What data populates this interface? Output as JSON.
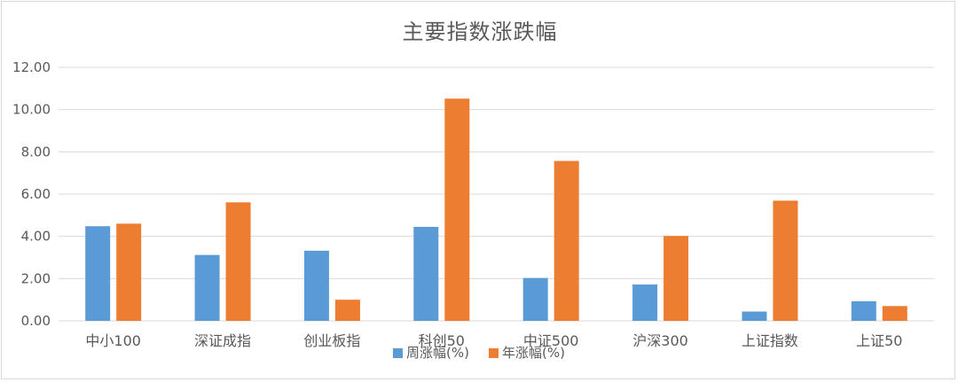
{
  "chart_data": {
    "type": "bar",
    "title": "主要指数涨跌幅",
    "categories": [
      "中小100",
      "深证成指",
      "创业板指",
      "科创50",
      "中证500",
      "沪深300",
      "上证指数",
      "上证50"
    ],
    "series": [
      {
        "name": "周涨幅(%)",
        "color": "#5b9bd5",
        "values": [
          4.48,
          3.12,
          3.32,
          4.45,
          2.03,
          1.72,
          0.44,
          0.93
        ]
      },
      {
        "name": "年涨幅(%)",
        "color": "#ed7d31",
        "values": [
          4.6,
          5.61,
          1.0,
          10.52,
          7.57,
          4.02,
          5.69,
          0.7
        ]
      }
    ],
    "ylim": [
      0,
      12
    ],
    "ytick_step": 2,
    "ytick_labels": [
      "0.00",
      "2.00",
      "4.00",
      "6.00",
      "8.00",
      "10.00",
      "12.00"
    ],
    "grid": true,
    "legend_position": "bottom",
    "xlabel": "",
    "ylabel": ""
  }
}
